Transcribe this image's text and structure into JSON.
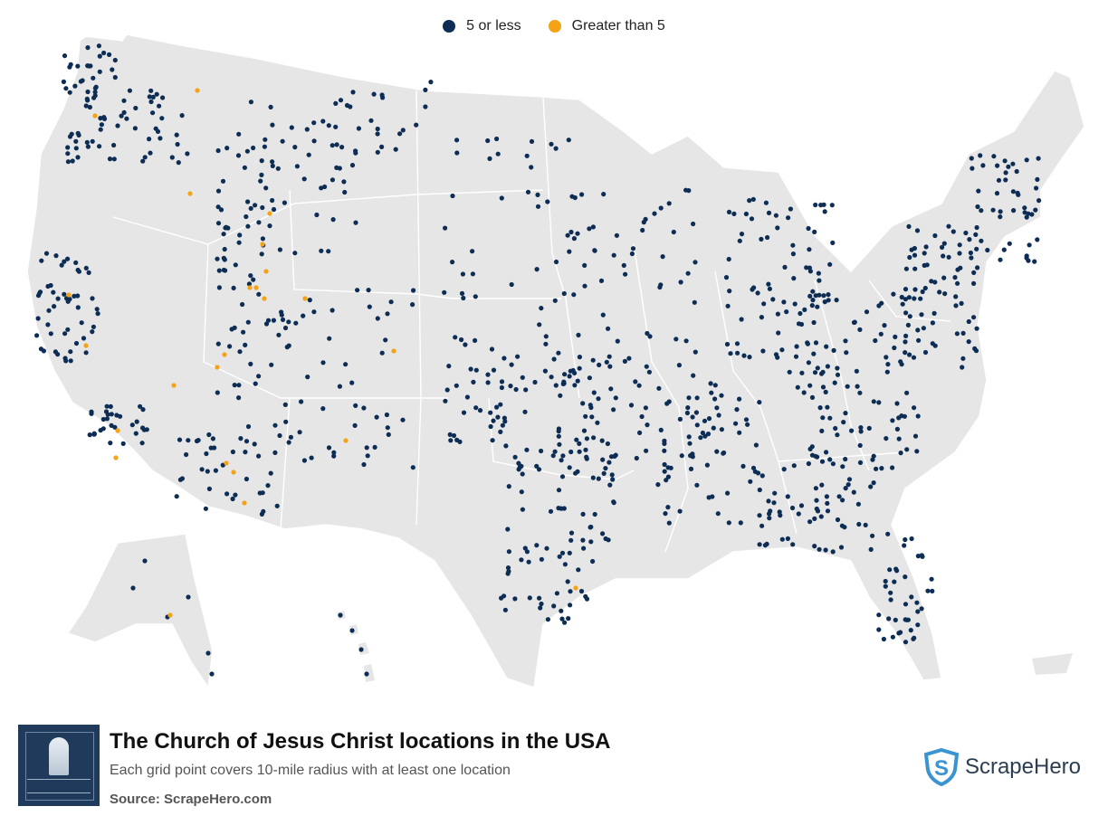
{
  "legend": [
    {
      "label": "5 or less",
      "color": "#0d2d55"
    },
    {
      "label": "Greater than 5",
      "color": "#f5a214"
    }
  ],
  "footer": {
    "title": "The Church of  Jesus Christ locations in the USA",
    "subtitle": "Each grid point covers 10-mile radius with at least one location",
    "source_label": "Source:",
    "source_value": "ScrapeHero.com",
    "brand_name": "ScrapeHero"
  },
  "colors": {
    "land": "#e6e6e6",
    "border": "#ffffff",
    "watermark": "#c9d6e3"
  },
  "icons": [
    "church-logo-icon",
    "scrapehero-shield-icon"
  ]
}
